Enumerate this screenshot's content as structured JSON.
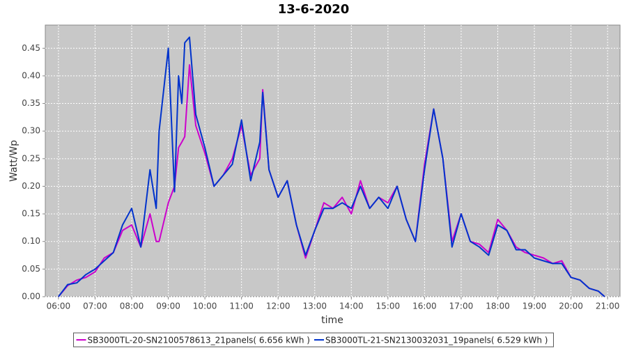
{
  "chart_data": {
    "type": "line",
    "title": "13-6-2020",
    "x_label": "time",
    "y_label": "Watt/Wp",
    "x": [
      6,
      6.25,
      6.5,
      6.75,
      7,
      7.25,
      7.5,
      7.75,
      8,
      8.25,
      8.5,
      8.67,
      8.75,
      9,
      9.17,
      9.28,
      9.37,
      9.45,
      9.58,
      9.75,
      10,
      10.25,
      10.5,
      10.75,
      11,
      11.25,
      11.5,
      11.58,
      11.75,
      12,
      12.25,
      12.5,
      12.75,
      13,
      13.25,
      13.5,
      13.75,
      14,
      14.25,
      14.5,
      14.75,
      15,
      15.25,
      15.5,
      15.75,
      16,
      16.25,
      16.5,
      16.75,
      17,
      17.25,
      17.5,
      17.75,
      18,
      18.25,
      18.5,
      18.75,
      19,
      19.25,
      19.5,
      19.75,
      20,
      20.25,
      20.5,
      20.75,
      20.92
    ],
    "series": [
      {
        "name": "SB3000TL-20-SN2100578613_21panels( 6.656 kWh )",
        "color": "#cc00cc",
        "values": [
          0,
          0.02,
          0.03,
          0.035,
          0.045,
          0.07,
          0.08,
          0.12,
          0.13,
          0.09,
          0.15,
          0.1,
          0.1,
          0.17,
          0.2,
          0.27,
          0.28,
          0.29,
          0.42,
          0.31,
          0.26,
          0.2,
          0.22,
          0.25,
          0.31,
          0.22,
          0.25,
          0.375,
          0.23,
          0.18,
          0.21,
          0.13,
          0.07,
          0.12,
          0.17,
          0.16,
          0.18,
          0.15,
          0.21,
          0.16,
          0.18,
          0.17,
          0.2,
          0.14,
          0.1,
          0.24,
          0.34,
          0.25,
          0.1,
          0.15,
          0.1,
          0.095,
          0.08,
          0.14,
          0.12,
          0.09,
          0.08,
          0.075,
          0.07,
          0.06,
          0.065,
          0.035,
          0.03,
          0.015,
          0.01,
          0
        ]
      },
      {
        "name": "SB3000TL-21-SN2130032031_19panels( 6.529 kWh )",
        "color": "#0033cc",
        "values": [
          0,
          0.022,
          0.025,
          0.04,
          0.05,
          0.065,
          0.08,
          0.13,
          0.16,
          0.09,
          0.23,
          0.16,
          0.3,
          0.45,
          0.19,
          0.4,
          0.35,
          0.46,
          0.47,
          0.33,
          0.27,
          0.2,
          0.22,
          0.24,
          0.32,
          0.21,
          0.28,
          0.37,
          0.23,
          0.18,
          0.21,
          0.13,
          0.075,
          0.12,
          0.16,
          0.16,
          0.17,
          0.16,
          0.2,
          0.16,
          0.18,
          0.16,
          0.2,
          0.14,
          0.1,
          0.23,
          0.34,
          0.25,
          0.09,
          0.15,
          0.1,
          0.09,
          0.075,
          0.13,
          0.12,
          0.085,
          0.085,
          0.07,
          0.065,
          0.06,
          0.06,
          0.035,
          0.03,
          0.015,
          0.01,
          0
        ]
      }
    ],
    "xlim": [
      5.64,
      21.34
    ],
    "xticks": [
      {
        "value": 6,
        "label": "06:00"
      },
      {
        "value": 7,
        "label": "07:00"
      },
      {
        "value": 8,
        "label": "08:00"
      },
      {
        "value": 9,
        "label": "09:00"
      },
      {
        "value": 10,
        "label": "10:00"
      },
      {
        "value": 11,
        "label": "11:00"
      },
      {
        "value": 12,
        "label": "12:00"
      },
      {
        "value": 13,
        "label": "13:00"
      },
      {
        "value": 14,
        "label": "14:00"
      },
      {
        "value": 15,
        "label": "15:00"
      },
      {
        "value": 16,
        "label": "16:00"
      },
      {
        "value": 17,
        "label": "17:00"
      },
      {
        "value": 18,
        "label": "18:00"
      },
      {
        "value": 19,
        "label": "19:00"
      },
      {
        "value": 20,
        "label": "20:00"
      },
      {
        "value": 21,
        "label": "21:00"
      }
    ],
    "ylim": [
      0,
      0.492
    ],
    "yticks": [
      {
        "value": 0,
        "label": "0.00"
      },
      0.05,
      {
        "value": 0.1,
        "label": "0.10"
      },
      0.15,
      {
        "value": 0.2,
        "label": "0.20"
      },
      0.25,
      {
        "value": 0.3,
        "label": "0.30"
      },
      0.35,
      {
        "value": 0.4,
        "label": "0.40"
      },
      0.45
    ],
    "grid": true,
    "legend": "bottom"
  }
}
